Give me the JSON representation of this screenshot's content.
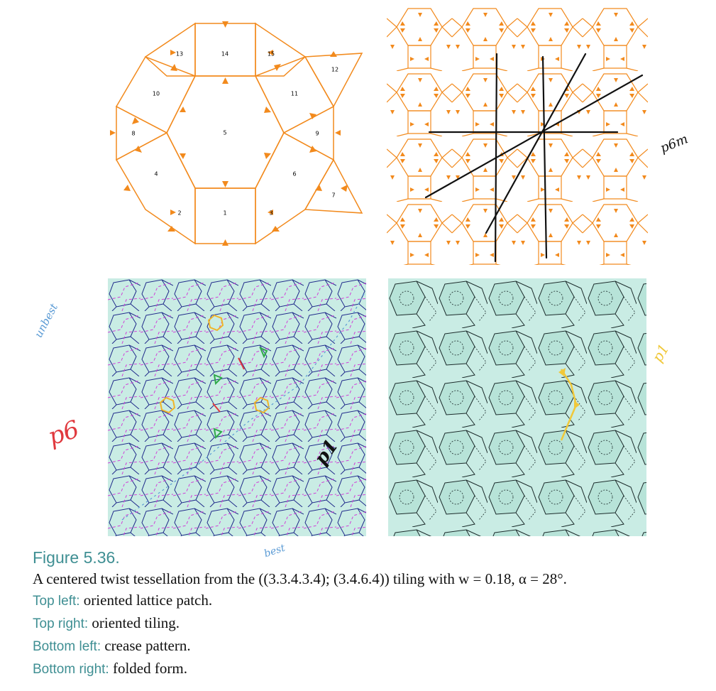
{
  "figure": {
    "label": "Figure 5.36.",
    "caption": "A centered twist tessellation from the ((3.3.4.3.4); (3.4.6.4)) tiling with w = 0.18, α = 28°.",
    "items": [
      {
        "key": "Top left:",
        "text": "oriented lattice patch."
      },
      {
        "key": "Top right:",
        "text": "oriented tiling."
      },
      {
        "key": "Bottom left:",
        "text": "crease pattern."
      },
      {
        "key": "Bottom right:",
        "text": "folded form."
      }
    ]
  },
  "lattice_patch": {
    "tile_numbers": [
      "1",
      "2",
      "3",
      "4",
      "5",
      "6",
      "7",
      "8",
      "9",
      "10",
      "11",
      "12",
      "13",
      "14",
      "15"
    ]
  },
  "annotations": {
    "top_right": "p6m",
    "bottom_left_side": "unbest",
    "bottom_left_group": "p6",
    "bottom_left_inner": "p1",
    "bottom_right": "p1",
    "bottom_caption_note": "best"
  },
  "colors": {
    "orange": "#f28a1d",
    "mint": "#c9ece4",
    "crease_blue": "#1f2a8a",
    "crease_magenta": "#d040d8",
    "caption_accent": "#3f8f93"
  }
}
